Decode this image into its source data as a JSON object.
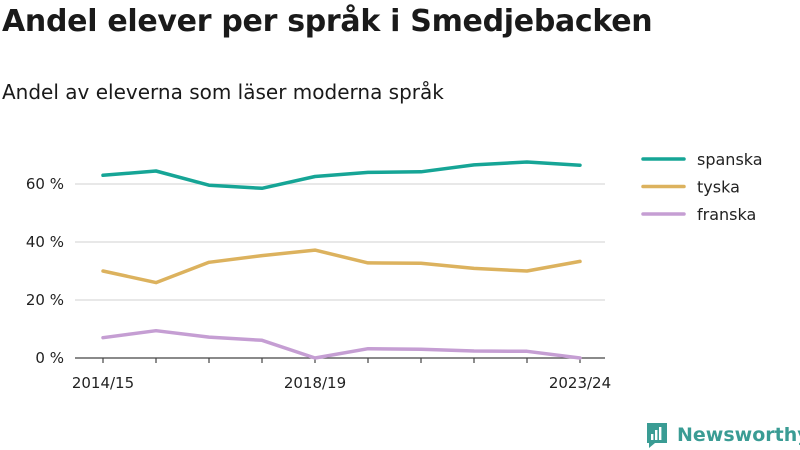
{
  "title": "Andel elever per språk i Smedjebacken",
  "subtitle": "Andel av eleverna som läser moderna språk",
  "brand": {
    "name": "Newsworthy",
    "color": "#3a9c94",
    "icon": "bar-chart-logo-icon"
  },
  "chart_data": {
    "type": "line",
    "x_tick_labels": [
      "2014/15",
      "2018/19",
      "2023/24"
    ],
    "x": [
      "2014/15",
      "2015/16",
      "2016/17",
      "2017/18",
      "2018/19",
      "2019/20",
      "2020/21",
      "2021/22",
      "2022/23",
      "2023/24"
    ],
    "y_ticks": [
      0,
      20,
      40,
      60
    ],
    "y_tick_labels": [
      "0 %",
      "20 %",
      "40 %",
      "60 %"
    ],
    "ylim": [
      0,
      70
    ],
    "grid": true,
    "legend_position": "top-right",
    "series": [
      {
        "name": "spanska",
        "color": "#16a596",
        "values": [
          63.0,
          64.5,
          59.6,
          58.5,
          62.6,
          64.0,
          64.2,
          66.6,
          67.6,
          66.5
        ]
      },
      {
        "name": "tyska",
        "color": "#dcb25e",
        "values": [
          30.0,
          26.0,
          33.0,
          35.3,
          37.2,
          32.8,
          32.7,
          30.9,
          30.0,
          33.3
        ]
      },
      {
        "name": "franska",
        "color": "#c59ed3",
        "values": [
          7.0,
          9.4,
          7.2,
          6.1,
          0.0,
          3.2,
          3.0,
          2.4,
          2.3,
          0.0
        ]
      }
    ]
  }
}
